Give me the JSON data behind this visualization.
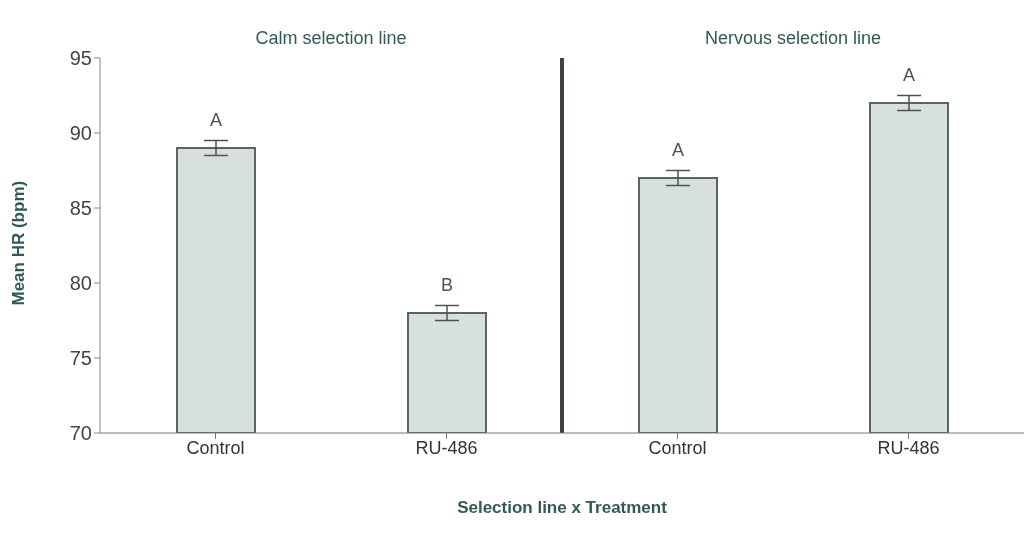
{
  "chart_data": {
    "type": "bar",
    "xlabel": "Selection line x Treatment",
    "ylabel": "Mean HR (bpm)",
    "categories": [
      "Control",
      "RU-486",
      "Control",
      "RU-486"
    ],
    "values": [
      89,
      78,
      87,
      92
    ],
    "errors": [
      0.5,
      0.5,
      0.5,
      0.5
    ],
    "value_labels": [
      "A",
      "B",
      "A",
      "A"
    ],
    "color": "#d8e0dc",
    "ylim": [
      70,
      95
    ],
    "yticks": [
      70,
      75,
      80,
      85,
      90,
      95
    ],
    "grid": false,
    "legend": false,
    "annotations": [
      "Calm selection line",
      "Nervous selection line"
    ]
  }
}
